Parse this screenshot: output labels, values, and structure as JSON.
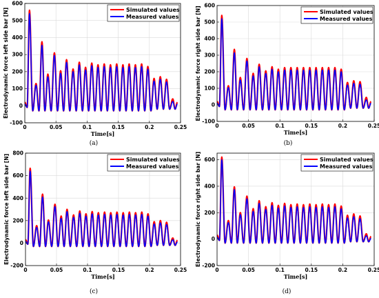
{
  "figure": {
    "panel_captions": [
      "(a)",
      "(b)",
      "(c)",
      "(d)"
    ]
  },
  "colors": {
    "simulated": "#ff0000",
    "measured": "#0000ff"
  },
  "chart_data": [
    {
      "type": "line",
      "caption": "(a)",
      "xlabel": "Time[s]",
      "ylabel": "Electrodynamic force left side bar [N]",
      "xlim": [
        0,
        0.25
      ],
      "ylim": [
        -100,
        600
      ],
      "xticks": [
        0,
        0.05,
        0.1,
        0.15,
        0.2,
        0.25
      ],
      "xtick_labels": [
        "0",
        "0.05",
        "0.1",
        "0.15",
        "0.2",
        "0.25"
      ],
      "yticks": [
        -100,
        0,
        100,
        200,
        300,
        400,
        500,
        600
      ],
      "grid": true,
      "legend_position": "top-right",
      "series": [
        {
          "name": "Simulated values",
          "color": "#ff0000",
          "x": [
            0,
            0.0075,
            0.018,
            0.0275,
            0.037,
            0.0475,
            0.0575,
            0.067,
            0.0775,
            0.0875,
            0.0975,
            0.1075,
            0.1175,
            0.1275,
            0.1375,
            0.1475,
            0.1575,
            0.1675,
            0.1775,
            0.1875,
            0.1975,
            0.2075,
            0.2175,
            0.2275,
            0.2375,
            0.245
          ],
          "y": [
            20,
            560,
            130,
            375,
            185,
            310,
            205,
            270,
            215,
            255,
            225,
            250,
            240,
            245,
            240,
            245,
            240,
            245,
            240,
            245,
            230,
            160,
            170,
            155,
            40,
            20
          ]
        },
        {
          "name": "Measured values",
          "color": "#0000ff",
          "x": [
            0,
            0.0075,
            0.018,
            0.0275,
            0.037,
            0.0475,
            0.0575,
            0.067,
            0.0775,
            0.0875,
            0.0975,
            0.1075,
            0.1175,
            0.1275,
            0.1375,
            0.1475,
            0.1575,
            0.1675,
            0.1775,
            0.1875,
            0.1975,
            0.2075,
            0.2175,
            0.2275,
            0.2375,
            0.245
          ],
          "y": [
            10,
            540,
            120,
            355,
            170,
            295,
            190,
            255,
            200,
            240,
            210,
            235,
            225,
            230,
            225,
            230,
            225,
            230,
            225,
            230,
            215,
            145,
            155,
            140,
            25,
            10
          ]
        }
      ]
    },
    {
      "type": "line",
      "caption": "(b)",
      "xlabel": "Time[s]",
      "ylabel": "Electrodynamic force right side bar [N]",
      "xlim": [
        0,
        0.25
      ],
      "ylim": [
        -100,
        600
      ],
      "xticks": [
        0,
        0.05,
        0.1,
        0.15,
        0.2,
        0.25
      ],
      "xtick_labels": [
        "0",
        "0.05",
        "0.1",
        "0.15",
        "0.2",
        "0.25"
      ],
      "yticks": [
        -100,
        0,
        100,
        200,
        300,
        400,
        500,
        600
      ],
      "grid": true,
      "legend_position": "top-right",
      "series": [
        {
          "name": "Simulated values",
          "color": "#ff0000",
          "x": [
            0,
            0.0075,
            0.018,
            0.0275,
            0.037,
            0.0475,
            0.0575,
            0.067,
            0.0775,
            0.0875,
            0.0975,
            0.1075,
            0.1175,
            0.1275,
            0.1375,
            0.1475,
            0.1575,
            0.1675,
            0.1775,
            0.1875,
            0.1975,
            0.2075,
            0.2175,
            0.2275,
            0.2375,
            0.245
          ],
          "y": [
            20,
            540,
            115,
            335,
            165,
            280,
            190,
            245,
            205,
            230,
            215,
            225,
            225,
            225,
            225,
            225,
            225,
            225,
            225,
            225,
            215,
            135,
            145,
            140,
            45,
            20
          ]
        },
        {
          "name": "Measured values",
          "color": "#0000ff",
          "x": [
            0,
            0.0075,
            0.018,
            0.0275,
            0.037,
            0.0475,
            0.0575,
            0.067,
            0.0775,
            0.0875,
            0.0975,
            0.1075,
            0.1175,
            0.1275,
            0.1375,
            0.1475,
            0.1575,
            0.1675,
            0.1775,
            0.1875,
            0.1975,
            0.2075,
            0.2175,
            0.2275,
            0.2375,
            0.245
          ],
          "y": [
            10,
            520,
            105,
            315,
            150,
            265,
            175,
            230,
            190,
            215,
            200,
            210,
            210,
            210,
            210,
            210,
            210,
            210,
            210,
            210,
            200,
            120,
            130,
            125,
            30,
            10
          ]
        }
      ]
    },
    {
      "type": "line",
      "caption": "(c)",
      "xlabel": "Time[s]",
      "ylabel": "Electrodynamic force left side bar [N]",
      "xlim": [
        0,
        0.25
      ],
      "ylim": [
        -200,
        800
      ],
      "xticks": [
        0,
        0.05,
        0.1,
        0.15,
        0.2,
        0.25
      ],
      "xtick_labels": [
        "0",
        "0.05",
        "0.1",
        "0.15",
        "0.2",
        "0.25"
      ],
      "yticks": [
        -200,
        0,
        200,
        400,
        600,
        800
      ],
      "grid": true,
      "legend_position": "top-right",
      "series": [
        {
          "name": "Simulated values",
          "color": "#ff0000",
          "x": [
            0,
            0.0075,
            0.018,
            0.0275,
            0.037,
            0.0475,
            0.0575,
            0.067,
            0.0775,
            0.0875,
            0.0975,
            0.1075,
            0.1175,
            0.1275,
            0.1375,
            0.1475,
            0.1575,
            0.1675,
            0.1775,
            0.1875,
            0.1975,
            0.2075,
            0.2175,
            0.2275,
            0.2375,
            0.245
          ],
          "y": [
            30,
            665,
            155,
            435,
            205,
            345,
            240,
            300,
            250,
            285,
            260,
            280,
            270,
            275,
            270,
            275,
            270,
            275,
            270,
            275,
            260,
            190,
            200,
            185,
            45,
            25
          ]
        },
        {
          "name": "Measured values",
          "color": "#0000ff",
          "x": [
            0,
            0.0075,
            0.018,
            0.0275,
            0.037,
            0.0475,
            0.0575,
            0.067,
            0.0775,
            0.0875,
            0.0975,
            0.1075,
            0.1175,
            0.1275,
            0.1375,
            0.1475,
            0.1575,
            0.1675,
            0.1775,
            0.1875,
            0.1975,
            0.2075,
            0.2175,
            0.2275,
            0.2375,
            0.245
          ],
          "y": [
            15,
            640,
            140,
            410,
            190,
            325,
            220,
            280,
            230,
            265,
            240,
            260,
            250,
            255,
            250,
            255,
            250,
            255,
            250,
            255,
            240,
            170,
            180,
            165,
            30,
            10
          ]
        }
      ]
    },
    {
      "type": "line",
      "caption": "(d)",
      "xlabel": "Time[s]",
      "ylabel": "Electrodynamic force right side bar [N]",
      "xlim": [
        0,
        0.25
      ],
      "ylim": [
        -200,
        650
      ],
      "xticks": [
        0,
        0.05,
        0.1,
        0.15,
        0.2,
        0.25
      ],
      "xtick_labels": [
        "0",
        "0.05",
        "0.1",
        "0.15",
        "0.2",
        "0.25"
      ],
      "yticks": [
        -200,
        0,
        200,
        400,
        600
      ],
      "grid": true,
      "legend_position": "top-right",
      "series": [
        {
          "name": "Simulated values",
          "color": "#ff0000",
          "x": [
            0,
            0.0075,
            0.018,
            0.0275,
            0.037,
            0.0475,
            0.0575,
            0.067,
            0.0775,
            0.0875,
            0.0975,
            0.1075,
            0.1175,
            0.1275,
            0.1375,
            0.1475,
            0.1575,
            0.1675,
            0.1775,
            0.1875,
            0.1975,
            0.2075,
            0.2175,
            0.2275,
            0.2375,
            0.245
          ],
          "y": [
            30,
            620,
            140,
            395,
            200,
            325,
            230,
            290,
            245,
            275,
            255,
            270,
            260,
            265,
            260,
            265,
            260,
            265,
            260,
            265,
            250,
            180,
            190,
            175,
            40,
            20
          ]
        },
        {
          "name": "Measured values",
          "color": "#0000ff",
          "x": [
            0,
            0.0075,
            0.018,
            0.0275,
            0.037,
            0.0475,
            0.0575,
            0.067,
            0.0775,
            0.0875,
            0.0975,
            0.1075,
            0.1175,
            0.1275,
            0.1375,
            0.1475,
            0.1575,
            0.1675,
            0.1775,
            0.1875,
            0.1975,
            0.2075,
            0.2175,
            0.2275,
            0.2375,
            0.245
          ],
          "y": [
            15,
            600,
            125,
            375,
            185,
            305,
            210,
            270,
            225,
            255,
            235,
            250,
            240,
            245,
            240,
            245,
            240,
            245,
            240,
            245,
            230,
            160,
            170,
            155,
            25,
            5
          ]
        }
      ]
    }
  ]
}
